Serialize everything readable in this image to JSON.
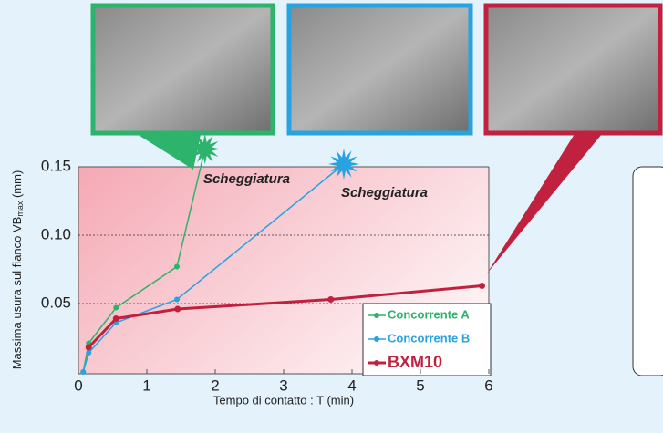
{
  "chart_data": {
    "type": "line",
    "x_label": "Tempo di contatto : T (min)",
    "y_label": [
      "Massima usura sul fianco VB",
      "max",
      " (mm)"
    ],
    "xlim": [
      0,
      6
    ],
    "xticks": [
      0,
      1,
      2,
      3,
      4,
      5,
      6
    ],
    "ylim": [
      0,
      0.15
    ],
    "yticks": [
      {
        "value": 0.05,
        "label": "0.05"
      },
      {
        "value": 0.1,
        "label": "0.10"
      },
      0.15
    ],
    "grid": true,
    "annotations": [
      {
        "text": "Scheggiatura",
        "color": "#2db36b"
      },
      {
        "text": "Scheggiatura",
        "color": "#29a3e0"
      }
    ],
    "series": [
      {
        "name": "Concorrente A",
        "color": "#2db36b",
        "x": [
          0.07,
          0.15,
          0.55,
          1.44,
          1.85
        ],
        "values": [
          0,
          0.021,
          0.047,
          0.077,
          0.163
        ]
      },
      {
        "name": "Concorrente B",
        "color": "#29a3e0",
        "x": [
          0.07,
          0.15,
          0.55,
          1.44,
          3.88
        ],
        "values": [
          0,
          0.014,
          0.036,
          0.053,
          0.152
        ]
      },
      {
        "name": "BXM10",
        "color": "#c0213f",
        "x": [
          0.15,
          0.55,
          1.45,
          3.69,
          5.9
        ],
        "values": [
          0.018,
          0.039,
          0.046,
          0.053,
          0.063
        ]
      }
    ]
  }
}
